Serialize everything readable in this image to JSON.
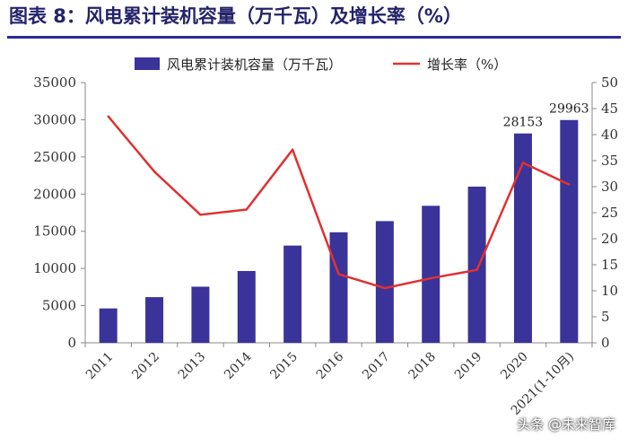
{
  "title": "图表 8：风电累计装机容量（万千瓦）及增长率（%）",
  "watermark": "头条 @未来智库",
  "chart_data": {
    "type": "bar+line",
    "categories": [
      "2011",
      "2012",
      "2013",
      "2014",
      "2015",
      "2016",
      "2017",
      "2018",
      "2019",
      "2020",
      "2021(1-10月)"
    ],
    "series": [
      {
        "name": "风电累计装机容量（万千瓦）",
        "type": "bar",
        "axis": "left",
        "values": [
          4623,
          6142,
          7548,
          9657,
          13075,
          14864,
          16367,
          18426,
          21005,
          28153,
          29963
        ],
        "color": "#3a3399"
      },
      {
        "name": "增长率（%）",
        "type": "line",
        "axis": "right",
        "values": [
          43.5,
          32.9,
          24.6,
          25.6,
          37.1,
          13.2,
          10.5,
          12.4,
          14.0,
          34.6,
          30.4
        ],
        "color": "#e03131"
      }
    ],
    "data_labels": [
      {
        "index": 9,
        "text": "28153"
      },
      {
        "index": 10,
        "text": "29963"
      }
    ],
    "ylim_left": [
      0,
      35000
    ],
    "yticks_left": [
      "0",
      "5000",
      "10000",
      "15000",
      "20000",
      "25000",
      "30000",
      "35000"
    ],
    "ylim_right": [
      0,
      50
    ],
    "yticks_right": [
      "0",
      "5",
      "10",
      "15",
      "20",
      "25",
      "30",
      "35",
      "40",
      "45",
      "50"
    ],
    "legend_placement": "top",
    "grid": false
  }
}
